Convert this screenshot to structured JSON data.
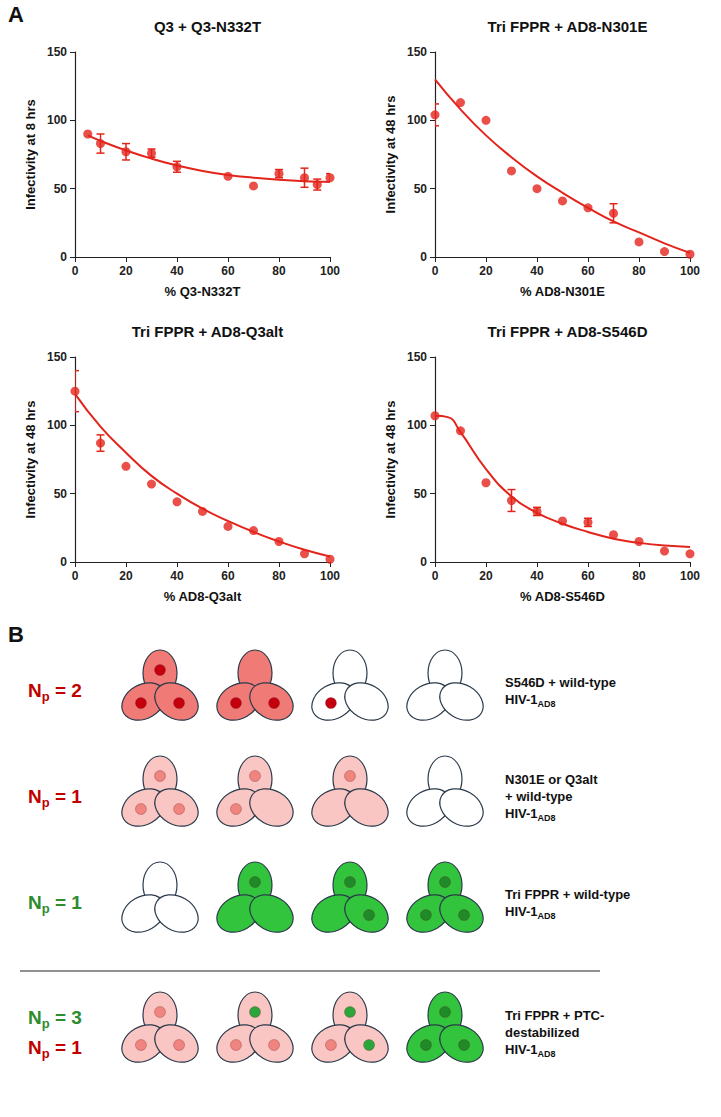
{
  "panel_a": {
    "letter": "A"
  },
  "chart_data": [
    {
      "type": "scatter",
      "title": "Q3 + Q3-N332T",
      "x_label": "% Q3-N332T",
      "y_label": "Infectivity at 8 hrs",
      "xlim": [
        0,
        100
      ],
      "xticks": [
        0,
        20,
        40,
        60,
        80,
        100
      ],
      "ylim": [
        0,
        150
      ],
      "yticks": [
        0,
        50,
        100,
        150
      ],
      "grid": false,
      "series": [
        {
          "type": "scatter",
          "color": "#e3241b",
          "marker": "circle",
          "x": [
            5,
            10,
            20,
            30,
            40,
            60,
            70,
            80,
            90,
            95,
            100
          ],
          "values": [
            90,
            83,
            77,
            76,
            66,
            59,
            52,
            61,
            58,
            53,
            58
          ],
          "errors": [
            null,
            7,
            6,
            3,
            4,
            null,
            null,
            3,
            7,
            4,
            3
          ]
        },
        {
          "type": "line",
          "color": "#e3241b",
          "line_style": "solid",
          "x": [
            5,
            10,
            20,
            30,
            40,
            50,
            60,
            70,
            80,
            90,
            100
          ],
          "values": [
            89,
            85,
            78,
            72,
            67,
            63,
            60,
            58,
            56.5,
            55.5,
            55
          ]
        }
      ]
    },
    {
      "type": "scatter",
      "title": "Tri FPPR + AD8-N301E",
      "x_label": "% AD8-N301E",
      "y_label": "Infectivity at 48 hrs",
      "xlim": [
        0,
        100
      ],
      "xticks": [
        0,
        20,
        40,
        60,
        80,
        100
      ],
      "ylim": [
        0,
        150
      ],
      "yticks": [
        0,
        50,
        100,
        150
      ],
      "grid": false,
      "series": [
        {
          "type": "scatter",
          "color": "#e3241b",
          "marker": "circle",
          "x": [
            0,
            10,
            20,
            30,
            40,
            50,
            60,
            70,
            80,
            90,
            100
          ],
          "values": [
            104,
            113,
            100,
            63,
            50,
            41,
            36,
            32,
            11,
            4,
            2
          ],
          "errors": [
            8,
            null,
            null,
            null,
            null,
            null,
            null,
            7,
            null,
            null,
            null
          ]
        },
        {
          "type": "line",
          "color": "#e3241b",
          "line_style": "solid",
          "x": [
            0,
            10,
            20,
            30,
            40,
            50,
            60,
            70,
            80,
            90,
            100
          ],
          "values": [
            130,
            108,
            89,
            73,
            59,
            47,
            36,
            26,
            18,
            10,
            3
          ]
        }
      ]
    },
    {
      "type": "scatter",
      "title": "Tri FPPR + AD8-Q3alt",
      "x_label": "% AD8-Q3alt",
      "y_label": "Infectivity at 48 hrs",
      "xlim": [
        0,
        100
      ],
      "xticks": [
        0,
        20,
        40,
        60,
        80,
        100
      ],
      "ylim": [
        0,
        150
      ],
      "yticks": [
        0,
        50,
        100,
        150
      ],
      "grid": false,
      "series": [
        {
          "type": "scatter",
          "color": "#e3241b",
          "marker": "circle",
          "x": [
            0,
            10,
            20,
            30,
            40,
            50,
            60,
            70,
            80,
            90,
            100
          ],
          "values": [
            125,
            87,
            70,
            57,
            44,
            37,
            26,
            23,
            15,
            6,
            2
          ],
          "errors": [
            15,
            6,
            null,
            null,
            null,
            null,
            null,
            null,
            null,
            null,
            null
          ]
        },
        {
          "type": "line",
          "color": "#e3241b",
          "line_style": "solid",
          "x": [
            0,
            10,
            20,
            30,
            40,
            50,
            60,
            70,
            80,
            90,
            100
          ],
          "values": [
            123,
            99,
            80,
            63,
            50,
            39,
            30,
            22,
            15,
            9,
            4
          ]
        }
      ]
    },
    {
      "type": "scatter",
      "title": "Tri FPPR + AD8-S546D",
      "x_label": "% AD8-S546D",
      "y_label": "Infectivity at 48 hrs",
      "xlim": [
        0,
        100
      ],
      "xticks": [
        0,
        20,
        40,
        60,
        80,
        100
      ],
      "ylim": [
        0,
        150
      ],
      "yticks": [
        0,
        50,
        100,
        150
      ],
      "grid": false,
      "series": [
        {
          "type": "scatter",
          "color": "#e3241b",
          "marker": "circle",
          "x": [
            0,
            10,
            20,
            30,
            40,
            50,
            60,
            70,
            80,
            90,
            100
          ],
          "values": [
            107,
            96,
            58,
            45,
            37,
            30,
            29,
            20,
            15,
            8,
            6
          ],
          "errors": [
            null,
            null,
            null,
            8,
            3,
            null,
            3,
            null,
            null,
            null,
            null
          ]
        },
        {
          "type": "line",
          "color": "#e3241b",
          "line_style": "solid",
          "x": [
            0,
            5,
            10,
            20,
            30,
            40,
            50,
            60,
            70,
            80,
            90,
            100
          ],
          "values": [
            107,
            106,
            95,
            68,
            48,
            36,
            28,
            22,
            17,
            14,
            12,
            11
          ]
        }
      ]
    }
  ],
  "panel_b": {
    "letter": "B",
    "rows": [
      {
        "np_labels": [
          {
            "text": "N",
            "sub": "p",
            "after": " = 2",
            "color": "#c00000"
          }
        ],
        "description": [
          {
            "text": "S546D + wild-type"
          },
          {
            "text": "HIV-1",
            "sub": "AD8"
          }
        ],
        "trimers": [
          {
            "fill": "#f07a76",
            "dots": [
              "#c4000f",
              "#c4000f",
              "#c4000f"
            ]
          },
          {
            "fill": "#f07a76",
            "dots": [
              null,
              "#c4000f",
              "#c4000f"
            ]
          },
          {
            "fill": "#ffffff",
            "dots": [
              null,
              "#c4000f",
              null
            ]
          },
          {
            "fill": "#ffffff",
            "dots": [
              null,
              null,
              null
            ]
          }
        ]
      },
      {
        "np_labels": [
          {
            "text": "N",
            "sub": "p",
            "after": " = 1",
            "color": "#c00000"
          }
        ],
        "description": [
          {
            "text": "N301E or Q3alt"
          },
          {
            "text": "+ wild-type"
          },
          {
            "text": "HIV-1",
            "sub": "AD8"
          }
        ],
        "trimers": [
          {
            "fill": "#f9c6c4",
            "dots": [
              "#f0857f",
              "#f0857f",
              "#f0857f"
            ]
          },
          {
            "fill": "#f9c6c4",
            "dots": [
              "#f0857f",
              "#f0857f",
              null
            ]
          },
          {
            "fill": "#f9c6c4",
            "dots": [
              "#f0857f",
              null,
              null
            ]
          },
          {
            "fill": "#ffffff",
            "dots": [
              null,
              null,
              null
            ]
          }
        ]
      },
      {
        "np_labels": [
          {
            "text": "N",
            "sub": "p",
            "after": " = 1",
            "color": "#2e8b2e"
          }
        ],
        "description": [
          {
            "text": "Tri FPPR + wild-type"
          },
          {
            "text": "HIV-1",
            "sub": "AD8"
          }
        ],
        "trimers": [
          {
            "fill": "#ffffff",
            "dots": [
              null,
              null,
              null
            ]
          },
          {
            "fill": "#33c43d",
            "dots": [
              "#1e8a28",
              null,
              null
            ]
          },
          {
            "fill": "#33c43d",
            "dots": [
              "#1e8a28",
              null,
              "#1e8a28"
            ]
          },
          {
            "fill": "#33c43d",
            "dots": [
              "#1e8a28",
              "#1e8a28",
              "#1e8a28"
            ]
          }
        ]
      },
      {
        "np_labels": [
          {
            "text": "N",
            "sub": "p",
            "after": " = 3",
            "color": "#2e8b2e"
          },
          {
            "text": "N",
            "sub": "p",
            "after": " = 1",
            "color": "#c00000"
          }
        ],
        "description": [
          {
            "text": "Tri FPPR + PTC-"
          },
          {
            "text": "destabilized"
          },
          {
            "text": "HIV-1",
            "sub": "AD8"
          }
        ],
        "trimers": [
          {
            "fill": "#f9c6c4",
            "dots": [
              "#f0857f",
              "#f0857f",
              "#f0857f"
            ]
          },
          {
            "fill": "#f9c6c4",
            "dots": [
              "#2aa63a",
              "#f0857f",
              "#f0857f"
            ]
          },
          {
            "fill": "#f9c6c4",
            "dots": [
              "#2aa63a",
              "#f0857f",
              "#2aa63a"
            ]
          },
          {
            "fill": "#33c43d",
            "dots": [
              "#1e8a28",
              "#1e8a28",
              "#1e8a28"
            ]
          }
        ]
      }
    ]
  }
}
